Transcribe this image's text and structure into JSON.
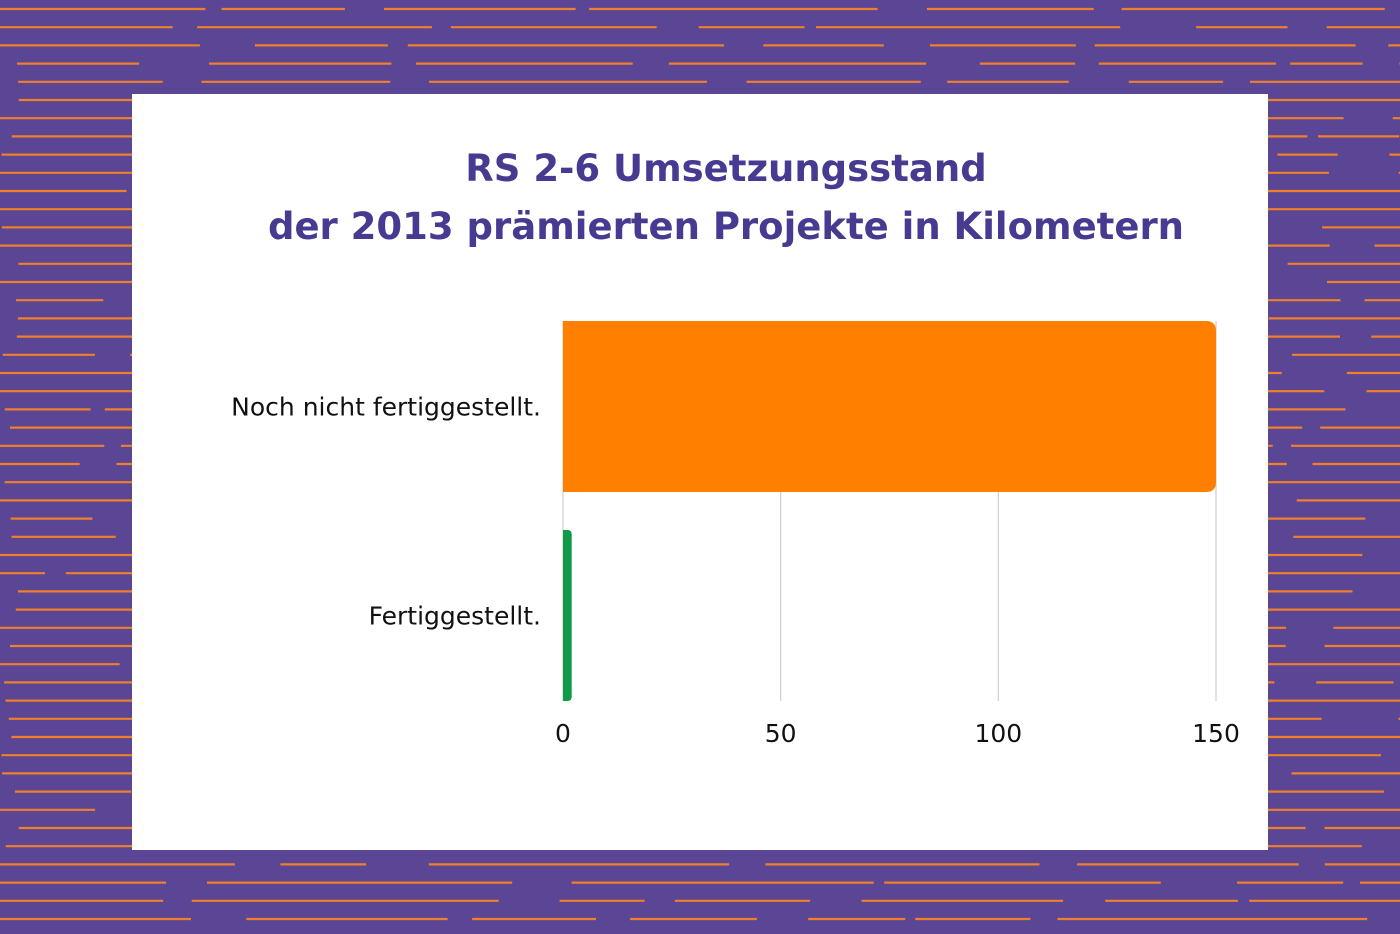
{
  "colors": {
    "background": "#5b4595",
    "stripe": "#f07f2b",
    "card": "#ffffff",
    "title": "#463a91",
    "grid": "#cfcfcf"
  },
  "chart_data": {
    "type": "bar",
    "orientation": "horizontal",
    "title_lines": [
      "RS 2-6 Umsetzungsstand",
      "der 2013 prämierten Projekte in Kilometern"
    ],
    "categories": [
      "Noch nicht fertiggestellt.",
      "Fertiggestellt."
    ],
    "values": [
      150,
      2
    ],
    "bar_colors": [
      "#ff8000",
      "#0e9a47"
    ],
    "xlim": [
      0,
      150
    ],
    "x_ticks": [
      0,
      50,
      100,
      150
    ],
    "x_tick_labels": [
      "0",
      "50",
      "100",
      "150"
    ],
    "grid": "vertical",
    "legend": "none",
    "xlabel": "",
    "ylabel": ""
  }
}
